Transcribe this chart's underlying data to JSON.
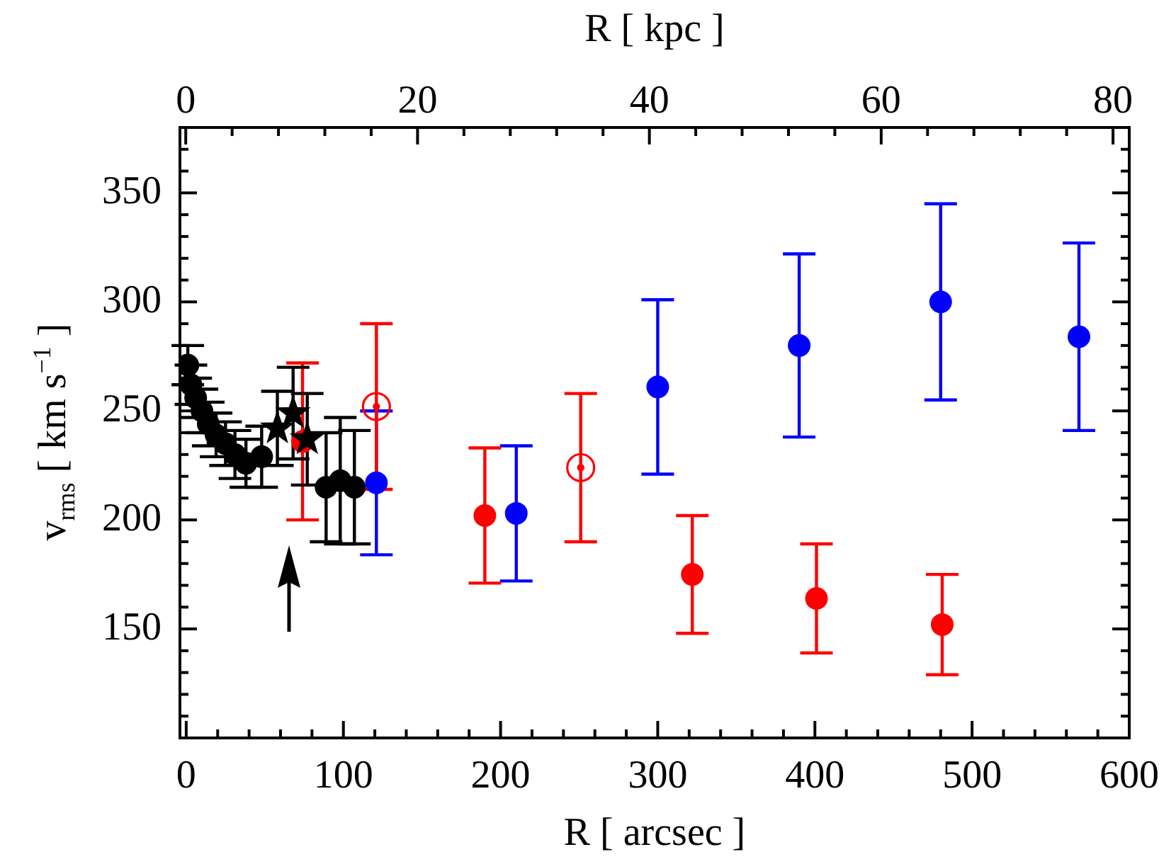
{
  "chart_data": {
    "type": "scatter",
    "xlabel": "R [ arcsec ]",
    "ylabel": "v$_{rms}$ [ km s$^{−1}$ ]",
    "x2label": "R [ kpc ]",
    "xlim": [
      -4,
      600
    ],
    "xticks": [
      0,
      {
        "value": 20,
        "label": null
      },
      {
        "value": 40,
        "label": null
      },
      {
        "value": 60,
        "label": null
      },
      {
        "value": 80,
        "label": null
      },
      100,
      {
        "value": 120,
        "label": null
      },
      {
        "value": 140,
        "label": null
      },
      {
        "value": 160,
        "label": null
      },
      {
        "value": 180,
        "label": null
      },
      200,
      {
        "value": 220,
        "label": null
      },
      {
        "value": 240,
        "label": null
      },
      {
        "value": 260,
        "label": null
      },
      {
        "value": 280,
        "label": null
      },
      300,
      {
        "value": 320,
        "label": null
      },
      {
        "value": 340,
        "label": null
      },
      {
        "value": 360,
        "label": null
      },
      {
        "value": 380,
        "label": null
      },
      400,
      {
        "value": 420,
        "label": null
      },
      {
        "value": 440,
        "label": null
      },
      {
        "value": 460,
        "label": null
      },
      {
        "value": 480,
        "label": null
      },
      500,
      {
        "value": 520,
        "label": null
      },
      {
        "value": 540,
        "label": null
      },
      {
        "value": 560,
        "label": null
      },
      {
        "value": 580,
        "label": null
      },
      600
    ],
    "x2lim": [
      -0.5,
      81.4
    ],
    "x2ticks": [
      0,
      {
        "value": 4,
        "label": null
      },
      {
        "value": 8,
        "label": null
      },
      {
        "value": 12,
        "label": null
      },
      {
        "value": 16,
        "label": null
      },
      20,
      {
        "value": 24,
        "label": null
      },
      {
        "value": 28,
        "label": null
      },
      {
        "value": 32,
        "label": null
      },
      {
        "value": 36,
        "label": null
      },
      40,
      {
        "value": 44,
        "label": null
      },
      {
        "value": 48,
        "label": null
      },
      {
        "value": 52,
        "label": null
      },
      {
        "value": 56,
        "label": null
      },
      60,
      {
        "value": 64,
        "label": null
      },
      {
        "value": 68,
        "label": null
      },
      {
        "value": 72,
        "label": null
      },
      {
        "value": 76,
        "label": null
      },
      80
    ],
    "ylim": [
      100,
      380
    ],
    "yticks": [
      {
        "value": 110,
        "label": null
      },
      {
        "value": 120,
        "label": null
      },
      {
        "value": 130,
        "label": null
      },
      {
        "value": 140,
        "label": null
      },
      150,
      {
        "value": 160,
        "label": null
      },
      {
        "value": 170,
        "label": null
      },
      {
        "value": 180,
        "label": null
      },
      {
        "value": 190,
        "label": null
      },
      200,
      {
        "value": 210,
        "label": null
      },
      {
        "value": 220,
        "label": null
      },
      {
        "value": 230,
        "label": null
      },
      {
        "value": 240,
        "label": null
      },
      250,
      {
        "value": 260,
        "label": null
      },
      {
        "value": 270,
        "label": null
      },
      {
        "value": 280,
        "label": null
      },
      {
        "value": 290,
        "label": null
      },
      300,
      {
        "value": 310,
        "label": null
      },
      {
        "value": 320,
        "label": null
      },
      {
        "value": 330,
        "label": null
      },
      {
        "value": 340,
        "label": null
      },
      350,
      {
        "value": 360,
        "label": null
      },
      {
        "value": 370,
        "label": null
      }
    ],
    "grid": false,
    "legend": false,
    "series": [
      {
        "color": "#000000",
        "marker": "circle",
        "x": [
          1,
          3,
          6,
          10,
          14,
          19,
          25,
          31,
          38,
          48,
          89,
          98,
          107
        ],
        "values": [
          271,
          262,
          256,
          250,
          244,
          239,
          235,
          230,
          226,
          229,
          215,
          218,
          215
        ],
        "errors": [
          9,
          9,
          9,
          10,
          10,
          10,
          10,
          11,
          11,
          14,
          25,
          29,
          26
        ]
      },
      {
        "color": "#000000",
        "marker": "star",
        "x": [
          58,
          68,
          77
        ],
        "values": [
          242,
          249,
          237
        ],
        "errors": [
          17,
          21,
          21
        ]
      },
      {
        "color": "#ff0000",
        "marker": "circle",
        "x": [
          74,
          190,
          322,
          401,
          481
        ],
        "values": [
          236,
          202,
          175,
          164,
          152
        ],
        "errors": [
          36,
          31,
          27,
          25,
          23
        ]
      },
      {
        "color": "#ff0000",
        "marker": "circle",
        "x": [
          121,
          251
        ],
        "values": [
          252,
          224
        ],
        "errors": [
          38,
          34
        ]
      },
      {
        "color": "#0000ff",
        "marker": "circle",
        "x": [
          121,
          210,
          300,
          390,
          480,
          568
        ],
        "values": [
          217,
          203,
          261,
          280,
          300,
          284
        ],
        "errors": [
          33,
          31,
          40,
          42,
          45,
          43
        ]
      }
    ]
  }
}
